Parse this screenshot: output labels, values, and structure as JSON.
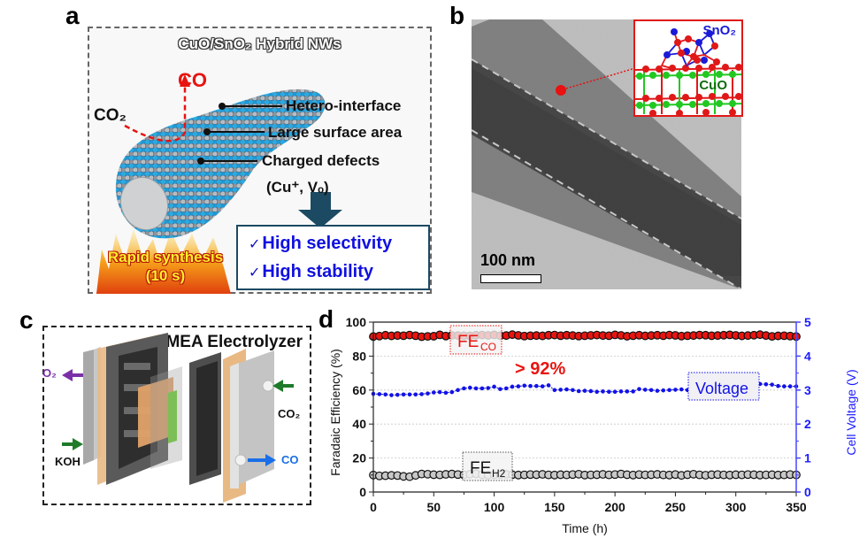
{
  "figure": {
    "panel_labels": [
      "a",
      "b",
      "c",
      "d"
    ]
  },
  "panel_a": {
    "title": "CuO/SnO₂ Hybrid NWs",
    "co_product": "CO",
    "co2_reactant": "CO₂",
    "features": [
      "Hetero-interface",
      "Large surface area",
      "Charged defects",
      "(Cu⁺, Vₒ)"
    ],
    "synthesis_line1": "Rapid synthesis",
    "synthesis_line2": "(10 s)",
    "highlights": [
      "High selectivity",
      "High stability"
    ],
    "check_glyph": "✓",
    "colors": {
      "nanowire_blue": "#29a9e0",
      "nanowire_gray": "#9a9a9a",
      "arrow_dark": "#1c4a63",
      "highlight_text": "#1010e0",
      "co_red": "#e8140f"
    }
  },
  "panel_b": {
    "scale_bar_label": "100 nm",
    "inset_labels": {
      "top": "SnO₂",
      "bottom": "CuO"
    },
    "colors": {
      "inset_border": "#e01818",
      "sn_atom": "#1a1ad8",
      "o_atom": "#e01818",
      "cu_atom": "#22c822",
      "cuo_text": "#0e6e0e"
    }
  },
  "panel_c": {
    "title": "MEA Electrolyzer",
    "labels": {
      "o2": "O₂",
      "koh": "KOH",
      "co2": "CO₂",
      "co": "CO"
    },
    "colors": {
      "o2": "#7a2fa8",
      "inlet_arrow": "#1f7a2a",
      "co": "#1a6fe8"
    }
  },
  "chart_data": {
    "type": "scatter",
    "title": "",
    "xlabel": "Time (h)",
    "ylabel": "Faradaic Efficiency (%)",
    "y2label": "Cell Voltage (V)",
    "xlim": [
      0,
      350
    ],
    "ylim": [
      0,
      100
    ],
    "y2lim": [
      0,
      5
    ],
    "xticks": [
      "0",
      "50",
      "100",
      "150",
      "200",
      "250",
      "300",
      "350"
    ],
    "yticks": [
      "0",
      "20",
      "40",
      "60",
      "80",
      "100"
    ],
    "y2ticks": [
      "0",
      "1",
      "2",
      "3",
      "4",
      "5"
    ],
    "grid": "horizontal dotted",
    "x_step": 5,
    "series": [
      {
        "name": "FE_CO",
        "label_main": "FE",
        "label_sub": "CO",
        "axis": "left",
        "color": "#e8140f",
        "values": [
          91.5,
          91.8,
          92.3,
          91.9,
          92.1,
          92.0,
          92.4,
          92.0,
          91.4,
          91.6,
          91.7,
          92.5,
          91.8,
          92.2,
          92.1,
          92.0,
          91.9,
          92.3,
          92.4,
          92.2,
          92.5,
          92.0,
          92.1,
          92.6,
          92.2,
          91.8,
          92.0,
          92.1,
          91.9,
          92.3,
          92.4,
          92.0,
          92.3,
          92.1,
          91.8,
          92.0,
          92.2,
          92.4,
          92.1,
          92.0,
          92.5,
          92.2,
          91.7,
          92.0,
          92.3,
          91.9,
          92.1,
          92.3,
          92.0,
          92.4,
          92.2,
          91.8,
          92.0,
          92.1,
          92.4,
          92.3,
          92.0,
          92.1,
          92.3,
          92.5,
          92.2,
          91.9,
          92.1,
          92.3,
          92.6,
          92.1,
          91.6,
          91.9,
          92.0,
          91.8,
          91.5
        ],
        "annotation": "> 92%"
      },
      {
        "name": "FE_H2",
        "label_main": "FE",
        "label_sub": "H2",
        "axis": "left",
        "color": "#c8c8c8",
        "values": [
          10.0,
          9.5,
          9.6,
          9.8,
          9.7,
          9.2,
          9.0,
          9.8,
          10.6,
          10.5,
          10.2,
          10.1,
          10.4,
          10.6,
          10.3,
          10.1,
          10.5,
          10.7,
          10.2,
          10.0,
          10.1,
          10.3,
          10.4,
          10.2,
          10.0,
          10.1,
          10.3,
          10.2,
          10.4,
          10.1,
          10.0,
          10.2,
          10.1,
          10.3,
          10.5,
          10.0,
          10.1,
          10.2,
          10.4,
          10.1,
          10.3,
          10.6,
          10.2,
          10.0,
          10.3,
          10.1,
          10.2,
          10.4,
          10.1,
          10.0,
          10.3,
          9.8,
          10.2,
          10.5,
          10.1,
          9.9,
          10.2,
          10.3,
          10.1,
          10.0,
          10.2,
          10.1,
          10.3,
          10.2,
          10.0,
          10.1,
          10.2,
          10.0,
          10.1,
          10.3,
          10.1
        ]
      },
      {
        "name": "Voltage",
        "label_main": "Voltage",
        "axis": "right",
        "color": "#1212e8",
        "values": [
          2.89,
          2.88,
          2.87,
          2.85,
          2.86,
          2.87,
          2.87,
          2.87,
          2.88,
          2.9,
          2.93,
          2.94,
          2.92,
          2.94,
          3.0,
          3.05,
          3.07,
          3.05,
          3.05,
          3.06,
          3.1,
          3.03,
          3.05,
          3.1,
          3.11,
          3.13,
          3.12,
          3.12,
          3.11,
          3.14,
          3.0,
          3.01,
          3.02,
          3.0,
          2.97,
          2.98,
          2.97,
          2.95,
          2.96,
          2.95,
          2.95,
          2.96,
          2.96,
          2.96,
          3.03,
          3.01,
          3.0,
          2.98,
          2.99,
          3.0,
          3.01,
          3.02,
          3.0,
          2.99,
          3.02,
          3.03,
          3.05,
          3.08,
          3.1,
          3.12,
          3.11,
          3.1,
          3.12,
          3.13,
          3.18,
          3.17,
          3.16,
          3.12,
          3.11,
          3.11,
          3.11
        ]
      }
    ],
    "colors": {
      "right_axis": "#4747ff",
      "grid": "#c8c8c8"
    }
  }
}
